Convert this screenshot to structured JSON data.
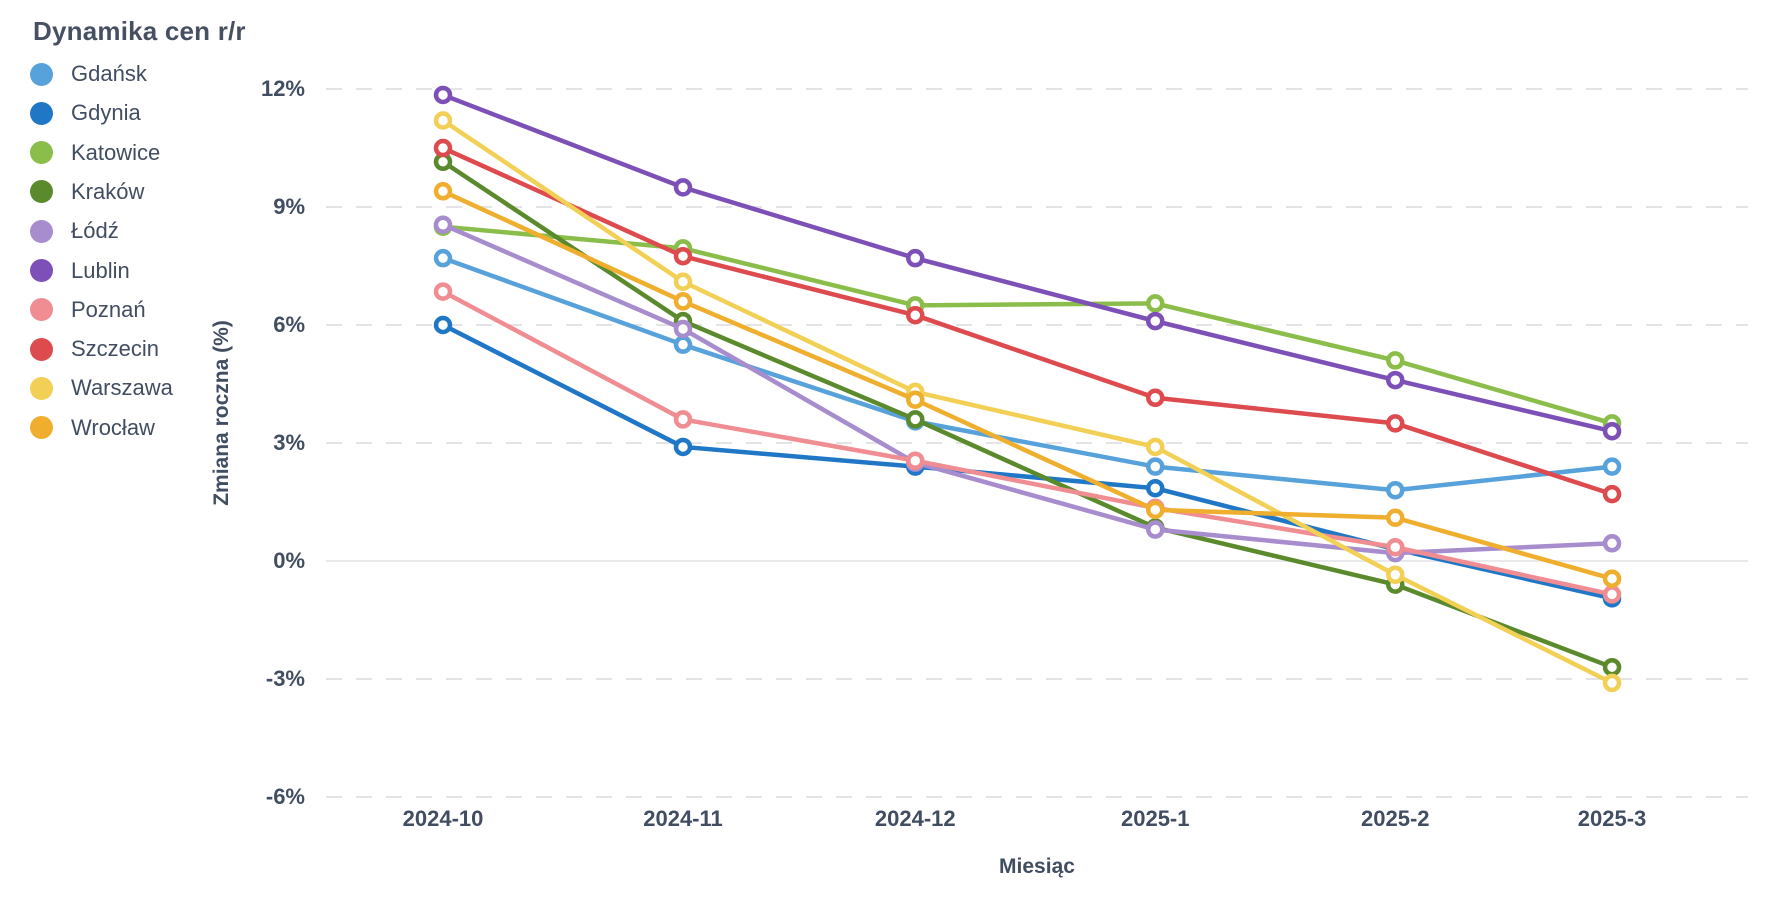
{
  "legend": {
    "title": "Dynamika cen r/r"
  },
  "chart_data": {
    "type": "line",
    "title": "Dynamika cen r/r",
    "xlabel": "Miesiąc",
    "ylabel": "Zmiana roczna (%)",
    "categories": [
      "2024-10",
      "2024-11",
      "2024-12",
      "2025-1",
      "2025-2",
      "2025-3"
    ],
    "x_is_time": true,
    "yticks": [
      12,
      9,
      6,
      3,
      0,
      -3,
      -6
    ],
    "ytick_labels": [
      "12%",
      "9%",
      "6%",
      "3%",
      "0%",
      "-3%",
      "-6%"
    ],
    "ylim": [
      -6,
      12
    ],
    "grid": "horizontal-dashed, zero-line-solid",
    "legend_position": "top-left-vertical",
    "marker": "open-circle",
    "series": [
      {
        "name": "Gdańsk",
        "color": "#58A2DC",
        "values": [
          7.7,
          5.5,
          3.55,
          2.4,
          1.8,
          2.4
        ]
      },
      {
        "name": "Gdynia",
        "color": "#2077C6",
        "values": [
          6.0,
          2.9,
          2.4,
          1.85,
          0.3,
          -0.95
        ]
      },
      {
        "name": "Katowice",
        "color": "#8BBD4A",
        "values": [
          8.5,
          7.95,
          6.5,
          6.55,
          5.1,
          3.5
        ]
      },
      {
        "name": "Kraków",
        "color": "#5A8A2C",
        "values": [
          10.15,
          6.1,
          3.6,
          0.85,
          -0.6,
          -2.7
        ]
      },
      {
        "name": "Łódź",
        "color": "#A78CCE",
        "values": [
          8.55,
          5.9,
          2.5,
          0.8,
          0.2,
          0.45
        ]
      },
      {
        "name": "Lublin",
        "color": "#7C50B6",
        "values": [
          11.85,
          9.5,
          7.7,
          6.1,
          4.6,
          3.3
        ]
      },
      {
        "name": "Poznań",
        "color": "#EF8D92",
        "values": [
          6.85,
          3.6,
          2.55,
          1.35,
          0.35,
          -0.85
        ]
      },
      {
        "name": "Szczecin",
        "color": "#DD4B4F",
        "values": [
          10.5,
          7.75,
          6.25,
          4.15,
          3.5,
          1.7
        ]
      },
      {
        "name": "Warszawa",
        "color": "#F2CF55",
        "values": [
          11.2,
          7.1,
          4.3,
          2.9,
          -0.35,
          -3.1
        ]
      },
      {
        "name": "Wrocław",
        "color": "#EFAE2D",
        "values": [
          9.4,
          6.6,
          4.1,
          1.3,
          1.1,
          -0.45
        ]
      }
    ],
    "grid_color_dashed": "#E4E4E6",
    "grid_color_zero": "#E9E9EB",
    "text_color": "#414D61"
  }
}
